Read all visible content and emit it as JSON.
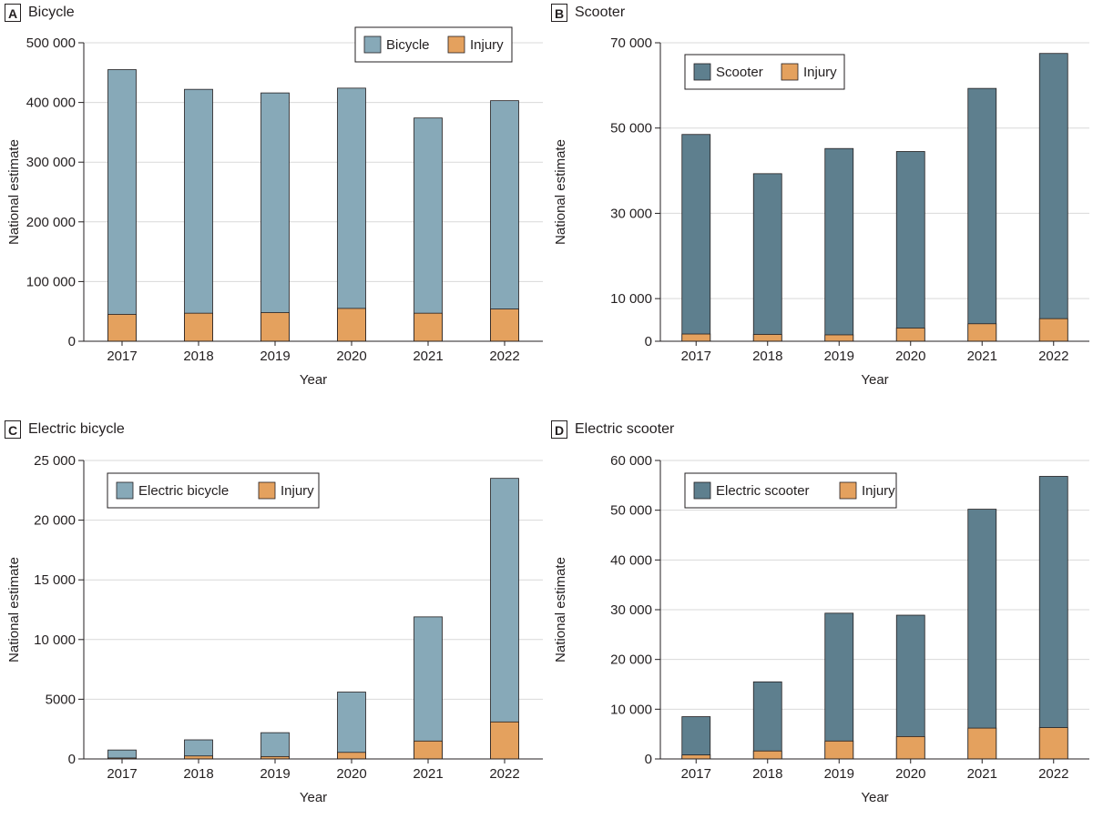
{
  "colors": {
    "bicycle": "#87a9b8",
    "scooter": "#5e7f8e",
    "injury": "#e4a15e",
    "grid": "#d9d9d9",
    "axis": "#231f20"
  },
  "chart_data": [
    {
      "id": "A",
      "letter": "A",
      "type": "bar",
      "title": "Bicycle",
      "xlabel": "Year",
      "ylabel": "National estimate",
      "categories": [
        "2017",
        "2018",
        "2019",
        "2020",
        "2021",
        "2022"
      ],
      "ylim": [
        0,
        500000
      ],
      "yticks": [
        0,
        100000,
        200000,
        300000,
        400000,
        500000
      ],
      "ytick_labels": [
        "0",
        "100 000",
        "200 000",
        "300 000",
        "400 000",
        "500 000"
      ],
      "legend_position": "top-right",
      "series": [
        {
          "name": "Bicycle",
          "color_key": "bicycle",
          "values": [
            455000,
            422000,
            416000,
            424000,
            374000,
            403000
          ]
        },
        {
          "name": "Injury",
          "color_key": "injury",
          "values": [
            45000,
            47000,
            48000,
            55000,
            47000,
            54000
          ]
        }
      ]
    },
    {
      "id": "B",
      "letter": "B",
      "type": "bar",
      "title": "Scooter",
      "xlabel": "Year",
      "ylabel": "National estimate",
      "categories": [
        "2017",
        "2018",
        "2019",
        "2020",
        "2021",
        "2022"
      ],
      "ylim": [
        0,
        70000
      ],
      "yticks": [
        0,
        10000,
        30000,
        50000,
        70000
      ],
      "ytick_labels": [
        "0",
        "10 000",
        "30 000",
        "50 000",
        "70 000"
      ],
      "legend_position": "top-left",
      "series": [
        {
          "name": "Scooter",
          "color_key": "scooter",
          "values": [
            48500,
            39300,
            45200,
            44500,
            59300,
            67500
          ]
        },
        {
          "name": "Injury",
          "color_key": "injury",
          "values": [
            1700,
            1600,
            1500,
            3100,
            4100,
            5300
          ]
        }
      ]
    },
    {
      "id": "C",
      "letter": "C",
      "type": "bar",
      "title": "Electric bicycle",
      "xlabel": "Year",
      "ylabel": "National estimate",
      "categories": [
        "2017",
        "2018",
        "2019",
        "2020",
        "2021",
        "2022"
      ],
      "ylim": [
        0,
        25000
      ],
      "yticks": [
        0,
        5000,
        10000,
        15000,
        20000,
        25000
      ],
      "ytick_labels": [
        "0",
        "5000",
        "10 000",
        "15 000",
        "20 000",
        "25 000"
      ],
      "legend_position": "top-left",
      "series": [
        {
          "name": "Electric bicycle",
          "color_key": "bicycle",
          "values": [
            750,
            1600,
            2200,
            5600,
            11900,
            23500
          ]
        },
        {
          "name": "Injury",
          "color_key": "injury",
          "values": [
            80,
            250,
            200,
            550,
            1500,
            3100
          ]
        }
      ]
    },
    {
      "id": "D",
      "letter": "D",
      "type": "bar",
      "title": "Electric scooter",
      "xlabel": "Year",
      "ylabel": "National estimate",
      "categories": [
        "2017",
        "2018",
        "2019",
        "2020",
        "2021",
        "2022"
      ],
      "ylim": [
        0,
        60000
      ],
      "yticks": [
        0,
        10000,
        20000,
        30000,
        40000,
        50000,
        60000
      ],
      "ytick_labels": [
        "0",
        "10 000",
        "20 000",
        "30 000",
        "40 000",
        "50 000",
        "60 000"
      ],
      "legend_position": "top-left",
      "series": [
        {
          "name": "Electric scooter",
          "color_key": "scooter",
          "values": [
            8500,
            15500,
            29300,
            28900,
            50200,
            56800
          ]
        },
        {
          "name": "Injury",
          "color_key": "injury",
          "values": [
            800,
            1600,
            3600,
            4500,
            6200,
            6300
          ]
        }
      ]
    }
  ]
}
